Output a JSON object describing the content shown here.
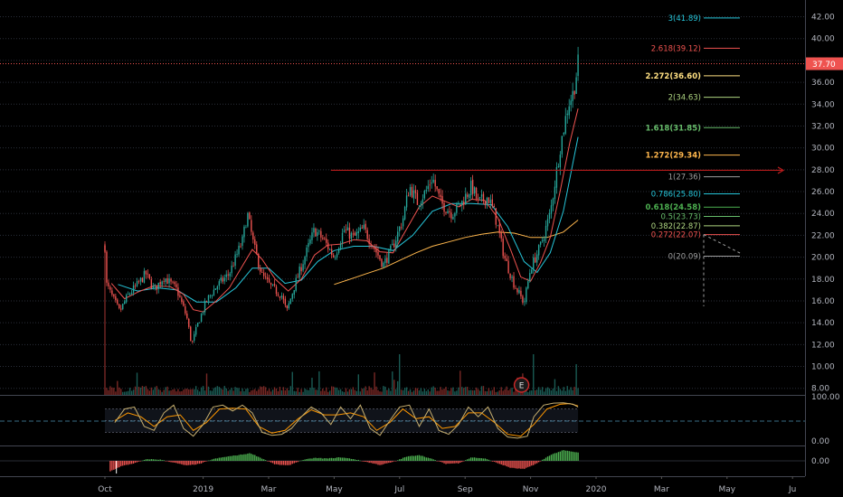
{
  "chart_data": {
    "type": "candlestick",
    "title": "",
    "price_axis": {
      "ticks": [
        "42.00",
        "40.00",
        "38.00",
        "36.00",
        "34.00",
        "32.00",
        "30.00",
        "28.00",
        "26.00",
        "24.00",
        "22.00",
        "20.00",
        "18.00",
        "16.00",
        "14.00",
        "12.00",
        "10.00",
        "8.00"
      ],
      "ylim": [
        7.4,
        43.2
      ],
      "last_price": "37.70",
      "last_price_color": "#ef5350"
    },
    "time_axis": {
      "ticks": [
        {
          "label": "Oct",
          "t": 0
        },
        {
          "label": "2019",
          "t": 3
        },
        {
          "label": "Mar",
          "t": 5
        },
        {
          "label": "May",
          "t": 7
        },
        {
          "label": "Jul",
          "t": 9
        },
        {
          "label": "Sep",
          "t": 11
        },
        {
          "label": "Nov",
          "t": 13
        },
        {
          "label": "2020",
          "t": 15
        },
        {
          "label": "Mar",
          "t": 17
        },
        {
          "label": "May",
          "t": 19
        },
        {
          "label": "Ju",
          "t": 21
        }
      ]
    },
    "price_path": [
      {
        "t": 0.0,
        "p": 21.0
      },
      {
        "t": 0.05,
        "p": 17.5
      },
      {
        "t": 0.25,
        "p": 16.2
      },
      {
        "t": 0.45,
        "p": 15.0
      },
      {
        "t": 0.7,
        "p": 16.5
      },
      {
        "t": 1.0,
        "p": 17.5
      },
      {
        "t": 1.25,
        "p": 18.5
      },
      {
        "t": 1.5,
        "p": 17.0
      },
      {
        "t": 1.8,
        "p": 18.2
      },
      {
        "t": 2.2,
        "p": 17.0
      },
      {
        "t": 2.5,
        "p": 14.5
      },
      {
        "t": 2.65,
        "p": 12.0
      },
      {
        "t": 2.85,
        "p": 14.0
      },
      {
        "t": 3.1,
        "p": 16.0
      },
      {
        "t": 3.4,
        "p": 17.3
      },
      {
        "t": 3.8,
        "p": 18.5
      },
      {
        "t": 4.2,
        "p": 21.5
      },
      {
        "t": 4.35,
        "p": 24.0
      },
      {
        "t": 4.55,
        "p": 21.0
      },
      {
        "t": 4.8,
        "p": 18.3
      },
      {
        "t": 5.1,
        "p": 17.2
      },
      {
        "t": 5.4,
        "p": 16.5
      },
      {
        "t": 5.55,
        "p": 15.0
      },
      {
        "t": 5.8,
        "p": 17.5
      },
      {
        "t": 6.1,
        "p": 20.0
      },
      {
        "t": 6.4,
        "p": 22.5
      },
      {
        "t": 6.7,
        "p": 21.5
      },
      {
        "t": 7.0,
        "p": 20.0
      },
      {
        "t": 7.3,
        "p": 22.5
      },
      {
        "t": 7.6,
        "p": 21.8
      },
      {
        "t": 7.9,
        "p": 22.6
      },
      {
        "t": 8.2,
        "p": 21.0
      },
      {
        "t": 8.5,
        "p": 19.3
      },
      {
        "t": 8.8,
        "p": 21.0
      },
      {
        "t": 9.1,
        "p": 23.5
      },
      {
        "t": 9.3,
        "p": 26.5
      },
      {
        "t": 9.55,
        "p": 25.0
      },
      {
        "t": 9.8,
        "p": 26.0
      },
      {
        "t": 10.0,
        "p": 27.3
      },
      {
        "t": 10.25,
        "p": 25.0
      },
      {
        "t": 10.6,
        "p": 24.0
      },
      {
        "t": 10.9,
        "p": 25.0
      },
      {
        "t": 11.2,
        "p": 26.5
      },
      {
        "t": 11.4,
        "p": 25.0
      },
      {
        "t": 11.7,
        "p": 25.5
      },
      {
        "t": 11.9,
        "p": 24.0
      },
      {
        "t": 12.2,
        "p": 20.0
      },
      {
        "t": 12.5,
        "p": 17.5
      },
      {
        "t": 12.8,
        "p": 15.8
      },
      {
        "t": 13.0,
        "p": 19.0
      },
      {
        "t": 13.3,
        "p": 21.0
      },
      {
        "t": 13.6,
        "p": 24.0
      },
      {
        "t": 13.9,
        "p": 30.0
      },
      {
        "t": 14.15,
        "p": 34.0
      },
      {
        "t": 14.3,
        "p": 35.0
      },
      {
        "t": 14.45,
        "p": 37.7
      }
    ],
    "ma_fast_path": [
      {
        "t": 0.2,
        "p": 17.6
      },
      {
        "t": 0.6,
        "p": 16.2
      },
      {
        "t": 1.0,
        "p": 16.8
      },
      {
        "t": 1.5,
        "p": 17.4
      },
      {
        "t": 2.0,
        "p": 17.3
      },
      {
        "t": 2.4,
        "p": 16.6
      },
      {
        "t": 2.7,
        "p": 15.2
      },
      {
        "t": 3.0,
        "p": 15.0
      },
      {
        "t": 3.4,
        "p": 16.0
      },
      {
        "t": 3.8,
        "p": 17.2
      },
      {
        "t": 4.2,
        "p": 19.2
      },
      {
        "t": 4.5,
        "p": 20.7
      },
      {
        "t": 4.8,
        "p": 19.8
      },
      {
        "t": 5.2,
        "p": 18.0
      },
      {
        "t": 5.6,
        "p": 16.9
      },
      {
        "t": 6.0,
        "p": 18.0
      },
      {
        "t": 6.4,
        "p": 20.2
      },
      {
        "t": 6.8,
        "p": 21.1
      },
      {
        "t": 7.2,
        "p": 21.2
      },
      {
        "t": 7.6,
        "p": 21.6
      },
      {
        "t": 8.0,
        "p": 21.5
      },
      {
        "t": 8.4,
        "p": 20.5
      },
      {
        "t": 8.8,
        "p": 20.4
      },
      {
        "t": 9.2,
        "p": 22.5
      },
      {
        "t": 9.6,
        "p": 24.6
      },
      {
        "t": 10.0,
        "p": 25.6
      },
      {
        "t": 10.4,
        "p": 25.1
      },
      {
        "t": 10.8,
        "p": 24.6
      },
      {
        "t": 11.2,
        "p": 25.3
      },
      {
        "t": 11.6,
        "p": 25.2
      },
      {
        "t": 12.0,
        "p": 23.6
      },
      {
        "t": 12.4,
        "p": 20.6
      },
      {
        "t": 12.7,
        "p": 18.2
      },
      {
        "t": 13.0,
        "p": 17.8
      },
      {
        "t": 13.3,
        "p": 19.5
      },
      {
        "t": 13.6,
        "p": 21.8
      },
      {
        "t": 13.9,
        "p": 26.0
      },
      {
        "t": 14.2,
        "p": 30.5
      },
      {
        "t": 14.45,
        "p": 33.6
      }
    ],
    "ma_mid_path": [
      {
        "t": 0.4,
        "p": 17.5
      },
      {
        "t": 1.0,
        "p": 16.9
      },
      {
        "t": 1.6,
        "p": 17.2
      },
      {
        "t": 2.2,
        "p": 17.0
      },
      {
        "t": 2.8,
        "p": 15.9
      },
      {
        "t": 3.4,
        "p": 15.9
      },
      {
        "t": 4.0,
        "p": 17.2
      },
      {
        "t": 4.5,
        "p": 19.0
      },
      {
        "t": 5.0,
        "p": 19.0
      },
      {
        "t": 5.5,
        "p": 17.6
      },
      {
        "t": 6.0,
        "p": 17.9
      },
      {
        "t": 6.5,
        "p": 19.6
      },
      {
        "t": 7.0,
        "p": 20.6
      },
      {
        "t": 7.6,
        "p": 21.0
      },
      {
        "t": 8.2,
        "p": 21.0
      },
      {
        "t": 8.8,
        "p": 20.6
      },
      {
        "t": 9.4,
        "p": 22.0
      },
      {
        "t": 10.0,
        "p": 24.2
      },
      {
        "t": 10.6,
        "p": 24.9
      },
      {
        "t": 11.2,
        "p": 24.9
      },
      {
        "t": 11.8,
        "p": 24.8
      },
      {
        "t": 12.3,
        "p": 22.8
      },
      {
        "t": 12.8,
        "p": 19.6
      },
      {
        "t": 13.2,
        "p": 18.6
      },
      {
        "t": 13.6,
        "p": 20.4
      },
      {
        "t": 14.0,
        "p": 24.2
      },
      {
        "t": 14.45,
        "p": 31.0
      }
    ],
    "ma_slow_path": [
      {
        "t": 7.0,
        "p": 17.5
      },
      {
        "t": 7.5,
        "p": 18.0
      },
      {
        "t": 8.0,
        "p": 18.5
      },
      {
        "t": 8.5,
        "p": 19.0
      },
      {
        "t": 9.0,
        "p": 19.7
      },
      {
        "t": 9.5,
        "p": 20.4
      },
      {
        "t": 10.0,
        "p": 21.0
      },
      {
        "t": 10.5,
        "p": 21.4
      },
      {
        "t": 11.0,
        "p": 21.8
      },
      {
        "t": 11.5,
        "p": 22.1
      },
      {
        "t": 12.0,
        "p": 22.3
      },
      {
        "t": 12.5,
        "p": 22.2
      },
      {
        "t": 13.0,
        "p": 21.8
      },
      {
        "t": 13.5,
        "p": 21.8
      },
      {
        "t": 14.0,
        "p": 22.3
      },
      {
        "t": 14.45,
        "p": 23.4
      }
    ],
    "fibonacci": [
      {
        "label": "3(41.89)",
        "price": 41.89,
        "color": "#26c6da",
        "bold": false
      },
      {
        "label": "2.618(39.12)",
        "price": 39.12,
        "color": "#ef5350",
        "bold": false
      },
      {
        "label": "2.272(36.60)",
        "price": 36.6,
        "color": "#ffe082",
        "bold": true
      },
      {
        "label": "2(34.63)",
        "price": 34.63,
        "color": "#aed581",
        "bold": false
      },
      {
        "label": "1.618(31.85)",
        "price": 31.85,
        "color": "#66bb6a",
        "bold": true
      },
      {
        "label": "1.272(29.34)",
        "price": 29.34,
        "color": "#ffb74d",
        "bold": true
      },
      {
        "label": "1(27.36)",
        "price": 27.36,
        "color": "#9e9e9e",
        "bold": false
      },
      {
        "label": "0.786(25.80)",
        "price": 25.8,
        "color": "#26c6da",
        "bold": false
      },
      {
        "label": "0.618(24.58)",
        "price": 24.58,
        "color": "#4caf50",
        "bold": true
      },
      {
        "label": "0.5(23.73)",
        "price": 23.73,
        "color": "#66bb6a",
        "bold": false
      },
      {
        "label": "0.382(22.87)",
        "price": 22.87,
        "color": "#aed581",
        "bold": false
      },
      {
        "label": "0.272(22.07)",
        "price": 22.07,
        "color": "#ef5350",
        "bold": false
      },
      {
        "label": "0(20.09)",
        "price": 20.09,
        "color": "#9e9e9e",
        "bold": false
      }
    ],
    "horizontal_line": {
      "price": 27.95,
      "t_start": 6.9,
      "t_end": 21.0,
      "color": "#b71c1c"
    },
    "earnings_marker": {
      "label": "E",
      "t": 13.0
    },
    "oscillator": {
      "axis_ticks": [
        "100.00",
        "0.00"
      ],
      "levels": [
        80,
        50,
        20
      ],
      "k_path": [
        {
          "t": 0.3,
          "v": 45
        },
        {
          "t": 0.6,
          "v": 80
        },
        {
          "t": 0.9,
          "v": 85
        },
        {
          "t": 1.2,
          "v": 35
        },
        {
          "t": 1.5,
          "v": 25
        },
        {
          "t": 1.8,
          "v": 70
        },
        {
          "t": 2.1,
          "v": 90
        },
        {
          "t": 2.4,
          "v": 30
        },
        {
          "t": 2.7,
          "v": 10
        },
        {
          "t": 3.0,
          "v": 40
        },
        {
          "t": 3.3,
          "v": 85
        },
        {
          "t": 3.6,
          "v": 90
        },
        {
          "t": 3.9,
          "v": 75
        },
        {
          "t": 4.2,
          "v": 90
        },
        {
          "t": 4.5,
          "v": 70
        },
        {
          "t": 4.8,
          "v": 20
        },
        {
          "t": 5.1,
          "v": 12
        },
        {
          "t": 5.4,
          "v": 15
        },
        {
          "t": 5.7,
          "v": 30
        },
        {
          "t": 6.0,
          "v": 60
        },
        {
          "t": 6.3,
          "v": 85
        },
        {
          "t": 6.6,
          "v": 70
        },
        {
          "t": 6.9,
          "v": 40
        },
        {
          "t": 7.2,
          "v": 85
        },
        {
          "t": 7.5,
          "v": 55
        },
        {
          "t": 7.8,
          "v": 90
        },
        {
          "t": 8.1,
          "v": 30
        },
        {
          "t": 8.4,
          "v": 12
        },
        {
          "t": 8.7,
          "v": 50
        },
        {
          "t": 9.0,
          "v": 85
        },
        {
          "t": 9.3,
          "v": 90
        },
        {
          "t": 9.6,
          "v": 35
        },
        {
          "t": 9.9,
          "v": 80
        },
        {
          "t": 10.2,
          "v": 25
        },
        {
          "t": 10.5,
          "v": 15
        },
        {
          "t": 10.8,
          "v": 40
        },
        {
          "t": 11.1,
          "v": 85
        },
        {
          "t": 11.4,
          "v": 60
        },
        {
          "t": 11.7,
          "v": 85
        },
        {
          "t": 12.0,
          "v": 30
        },
        {
          "t": 12.3,
          "v": 8
        },
        {
          "t": 12.6,
          "v": 5
        },
        {
          "t": 12.9,
          "v": 10
        },
        {
          "t": 13.1,
          "v": 60
        },
        {
          "t": 13.4,
          "v": 90
        },
        {
          "t": 13.7,
          "v": 95
        },
        {
          "t": 14.0,
          "v": 96
        },
        {
          "t": 14.3,
          "v": 92
        },
        {
          "t": 14.45,
          "v": 85
        }
      ],
      "d_path": [
        {
          "t": 0.3,
          "v": 50
        },
        {
          "t": 0.7,
          "v": 70
        },
        {
          "t": 1.1,
          "v": 60
        },
        {
          "t": 1.5,
          "v": 35
        },
        {
          "t": 1.9,
          "v": 60
        },
        {
          "t": 2.3,
          "v": 65
        },
        {
          "t": 2.7,
          "v": 25
        },
        {
          "t": 3.1,
          "v": 45
        },
        {
          "t": 3.5,
          "v": 80
        },
        {
          "t": 3.9,
          "v": 82
        },
        {
          "t": 4.3,
          "v": 80
        },
        {
          "t": 4.7,
          "v": 35
        },
        {
          "t": 5.1,
          "v": 18
        },
        {
          "t": 5.5,
          "v": 25
        },
        {
          "t": 5.9,
          "v": 55
        },
        {
          "t": 6.3,
          "v": 78
        },
        {
          "t": 6.7,
          "v": 65
        },
        {
          "t": 7.1,
          "v": 65
        },
        {
          "t": 7.5,
          "v": 70
        },
        {
          "t": 7.9,
          "v": 60
        },
        {
          "t": 8.3,
          "v": 25
        },
        {
          "t": 8.7,
          "v": 45
        },
        {
          "t": 9.1,
          "v": 80
        },
        {
          "t": 9.5,
          "v": 55
        },
        {
          "t": 9.9,
          "v": 60
        },
        {
          "t": 10.3,
          "v": 30
        },
        {
          "t": 10.7,
          "v": 35
        },
        {
          "t": 11.1,
          "v": 70
        },
        {
          "t": 11.5,
          "v": 70
        },
        {
          "t": 11.9,
          "v": 45
        },
        {
          "t": 12.3,
          "v": 15
        },
        {
          "t": 12.7,
          "v": 10
        },
        {
          "t": 13.1,
          "v": 40
        },
        {
          "t": 13.5,
          "v": 80
        },
        {
          "t": 13.9,
          "v": 92
        },
        {
          "t": 14.2,
          "v": 94
        },
        {
          "t": 14.45,
          "v": 88
        }
      ]
    },
    "histogram": {
      "axis_ticks": [
        "0.00"
      ],
      "path": [
        {
          "t": 0.15,
          "v": -0.9
        },
        {
          "t": 0.5,
          "v": -0.45
        },
        {
          "t": 0.9,
          "v": -0.2
        },
        {
          "t": 1.3,
          "v": 0.15
        },
        {
          "t": 1.7,
          "v": 0.1
        },
        {
          "t": 2.1,
          "v": -0.15
        },
        {
          "t": 2.5,
          "v": -0.4
        },
        {
          "t": 2.9,
          "v": -0.25
        },
        {
          "t": 3.3,
          "v": 0.15
        },
        {
          "t": 3.7,
          "v": 0.35
        },
        {
          "t": 4.1,
          "v": 0.5
        },
        {
          "t": 4.45,
          "v": 0.65
        },
        {
          "t": 4.8,
          "v": 0.2
        },
        {
          "t": 5.2,
          "v": -0.3
        },
        {
          "t": 5.6,
          "v": -0.4
        },
        {
          "t": 6.0,
          "v": 0.05
        },
        {
          "t": 6.4,
          "v": 0.25
        },
        {
          "t": 6.8,
          "v": 0.2
        },
        {
          "t": 7.2,
          "v": 0.3
        },
        {
          "t": 7.6,
          "v": 0.15
        },
        {
          "t": 8.0,
          "v": -0.1
        },
        {
          "t": 8.4,
          "v": -0.35
        },
        {
          "t": 8.8,
          "v": -0.1
        },
        {
          "t": 9.2,
          "v": 0.35
        },
        {
          "t": 9.6,
          "v": 0.5
        },
        {
          "t": 10.0,
          "v": 0.15
        },
        {
          "t": 10.4,
          "v": -0.25
        },
        {
          "t": 10.8,
          "v": -0.2
        },
        {
          "t": 11.2,
          "v": 0.3
        },
        {
          "t": 11.6,
          "v": 0.2
        },
        {
          "t": 12.0,
          "v": -0.2
        },
        {
          "t": 12.4,
          "v": -0.6
        },
        {
          "t": 12.8,
          "v": -0.7
        },
        {
          "t": 13.2,
          "v": -0.2
        },
        {
          "t": 13.6,
          "v": 0.5
        },
        {
          "t": 14.0,
          "v": 0.9
        },
        {
          "t": 14.45,
          "v": 0.7
        }
      ]
    },
    "colors": {
      "up": "#26a69a",
      "down": "#ef5350",
      "ma_fast": "#ef5350",
      "ma_mid": "#26c6da",
      "ma_slow": "#ffb74d",
      "osc_k": "#c8b070",
      "osc_d": "#ff9800",
      "hist_up": "#4caf50",
      "hist_down": "#ef5350"
    }
  }
}
